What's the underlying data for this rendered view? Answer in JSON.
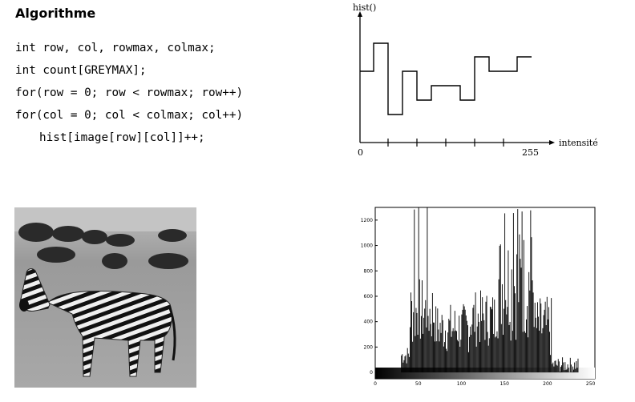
{
  "algorithm": {
    "title": "Algorithme",
    "code_lines": [
      "int row, col, rowmax, colmax;",
      "int count[GREYMAX];",
      "for(row = 0; row < rowmax; row++)",
      "for(col = 0; col < colmax; col++)",
      "hist[image[row][col]]++;"
    ]
  },
  "schematic": {
    "y_label": "hist()",
    "x_label": "intensité",
    "x_min_label": "0",
    "x_max_label": "255"
  },
  "photo": {
    "subject": "zebra-grayscale-photo"
  },
  "chart_data": {
    "type": "bar",
    "x_ticks": [
      0,
      50,
      100,
      150,
      200,
      250
    ],
    "y_ticks": [
      0,
      200,
      400,
      600,
      800,
      1000,
      1200
    ],
    "xlim": [
      0,
      255
    ],
    "ylim": [
      -50,
      1300
    ],
    "colors": {
      "bars": "#000000"
    }
  }
}
